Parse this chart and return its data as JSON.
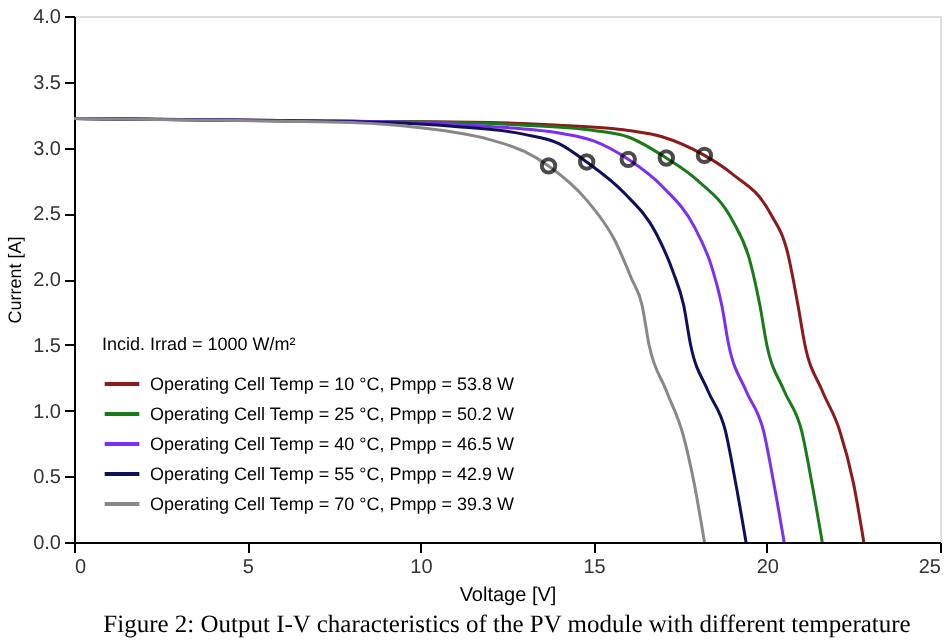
{
  "chart_data": {
    "type": "line",
    "title": "Figure 2: Output I-V characteristics of the PV module with different temperature",
    "xlabel": "Voltage [V]",
    "ylabel": "Current [A]",
    "legend_title": "Incid. Irrad = 1000 W/m²",
    "legend": "bottom left",
    "grid": false,
    "line_style": "solid",
    "xlim": [
      0,
      25
    ],
    "xticks": [
      0,
      5,
      10,
      15,
      20,
      25
    ],
    "ylim": [
      0,
      4
    ],
    "yticks": [
      {
        "value": 0,
        "label": "0.0"
      },
      {
        "value": 0.5,
        "label": "0.5"
      },
      {
        "value": 1,
        "label": "1.0"
      },
      {
        "value": 1.5,
        "label": "1.5"
      },
      {
        "value": 2,
        "label": "2.0"
      },
      {
        "value": 2.5,
        "label": "2.5"
      },
      {
        "value": 3,
        "label": "3.0"
      },
      {
        "value": 3.5,
        "label": "3.5"
      },
      {
        "value": 4,
        "label": "4.0"
      }
    ],
    "series": [
      {
        "name": "Operating Cell Temp =   10 °C,  Pmpp =  53.8 W",
        "color": "#8b1a1a",
        "x": [
          0,
          8,
          12,
          14,
          16,
          17,
          18.2,
          19,
          20.1,
          20.6,
          20.9,
          21.1,
          21.6,
          22.1,
          22.5,
          22.8
        ],
        "values": [
          3.22,
          3.2,
          3.19,
          3.17,
          3.13,
          3.08,
          2.94,
          2.8,
          2.5,
          2.2,
          1.8,
          1.5,
          1.15,
          0.85,
          0.45,
          0
        ]
      },
      {
        "name": "Operating Cell Temp =   25 °C,  Pmpp =  50.2 W",
        "color": "#1a7a1a",
        "x": [
          0,
          8,
          11,
          13,
          15,
          16,
          17.1,
          18,
          19,
          19.5,
          19.8,
          20.0,
          20.5,
          21.0,
          21.3,
          21.6
        ],
        "values": [
          3.22,
          3.2,
          3.19,
          3.17,
          3.13,
          3.08,
          2.92,
          2.75,
          2.45,
          2.15,
          1.8,
          1.5,
          1.15,
          0.85,
          0.45,
          0
        ]
      },
      {
        "name": "Operating Cell Temp =   40 °C,  Pmpp =  46.5 W",
        "color": "#7b2ff0",
        "x": [
          0,
          8,
          10,
          12,
          14,
          15,
          16.0,
          17,
          17.9,
          18.4,
          18.7,
          18.9,
          19.4,
          19.9,
          20.2,
          20.5
        ],
        "values": [
          3.22,
          3.2,
          3.19,
          3.16,
          3.11,
          3.05,
          2.91,
          2.7,
          2.4,
          2.1,
          1.8,
          1.5,
          1.15,
          0.85,
          0.45,
          0
        ]
      },
      {
        "name": "Operating Cell Temp =   55 °C,  Pmpp =  42.9 W",
        "color": "#10105a",
        "x": [
          0,
          7,
          9,
          11,
          13,
          14,
          14.8,
          15.9,
          16.8,
          17.3,
          17.6,
          17.8,
          18.3,
          18.8,
          19.1,
          19.4
        ],
        "values": [
          3.22,
          3.2,
          3.19,
          3.16,
          3.1,
          3.03,
          2.89,
          2.65,
          2.35,
          2.05,
          1.8,
          1.5,
          1.15,
          0.85,
          0.45,
          0
        ]
      },
      {
        "name": "Operating Cell Temp =   70 °C,  Pmpp =  39.3 W",
        "color": "#888888",
        "x": [
          0,
          6,
          8,
          10,
          12,
          13,
          13.7,
          14.8,
          15.6,
          16.1,
          16.4,
          16.6,
          17.1,
          17.6,
          17.9,
          18.2
        ],
        "values": [
          3.22,
          3.2,
          3.19,
          3.15,
          3.06,
          2.97,
          2.86,
          2.6,
          2.3,
          2.0,
          1.8,
          1.5,
          1.15,
          0.8,
          0.45,
          0
        ]
      },
      {
        "type": "scatter",
        "marker": "circle",
        "color": "#000000",
        "x": [
          18.2,
          17.1,
          16.0,
          14.8,
          13.7
        ],
        "values": [
          2.94,
          2.92,
          2.91,
          2.89,
          2.86
        ]
      }
    ]
  }
}
